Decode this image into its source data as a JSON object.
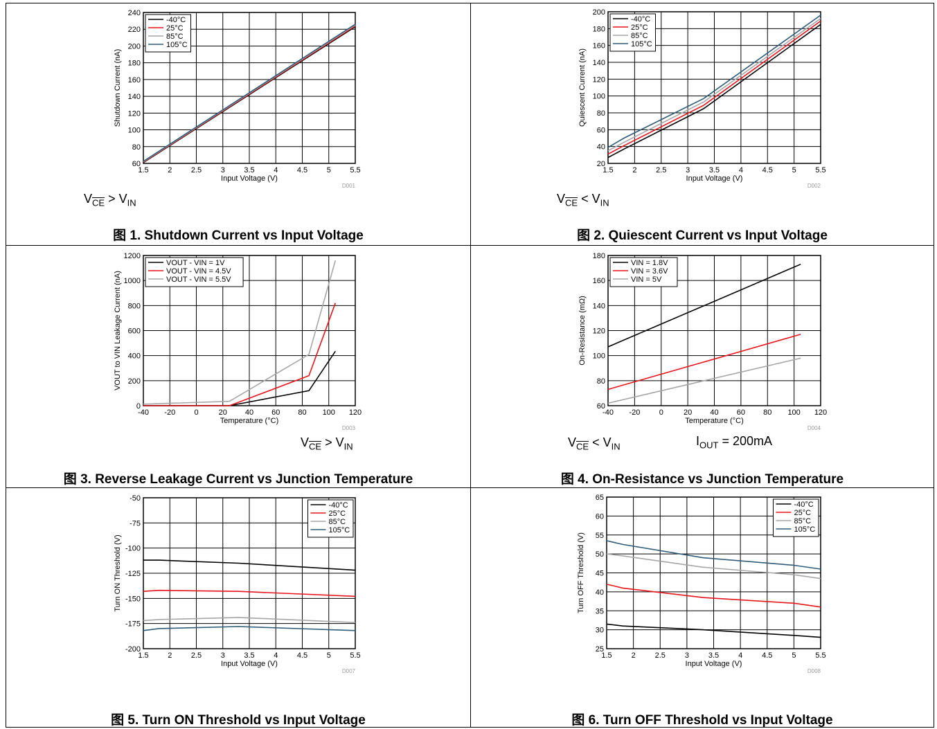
{
  "captions": [
    "图 1. Shutdown Current vs Input Voltage",
    "图 2. Quiescent Current vs Input Voltage",
    "图 3. Reverse Leakage Current vs Junction Temperature",
    "图 4. On-Resistance vs Junction Temperature",
    "图 5. Turn ON Threshold vs Input Voltage",
    "图 6. Turn OFF Threshold vs Input Voltage"
  ],
  "notes": [
    {
      "v_label": "V",
      "v_sub": "CE",
      "rel": " > ",
      "in_label": "V",
      "in_sub": "IN"
    },
    {
      "v_label": "V",
      "v_sub": "CE",
      "rel": " < ",
      "in_label": "V",
      "in_sub": "IN"
    },
    {
      "v_label": "V",
      "v_sub": "CE",
      "rel": " > ",
      "in_label": "V",
      "in_sub": "IN"
    },
    {
      "v_label": "V",
      "v_sub": "CE",
      "rel": " < ",
      "in_label": "V",
      "in_sub": "IN",
      "i_label": "I",
      "i_sub": "OUT",
      "i_value": " = 200mA"
    }
  ],
  "colors": {
    "black": "#000000",
    "red": "#e8141c",
    "gray": "#a6a6a6",
    "blue": "#2d5b78"
  },
  "chart_data": [
    {
      "type": "line",
      "id": "D001",
      "xlabel": "Input Voltage (V)",
      "ylabel": "Shutdown Current (nA)",
      "xlim": [
        1.5,
        5.5
      ],
      "ylim": [
        60,
        240
      ],
      "xticks": [
        "1.5",
        "2",
        "2.5",
        "3",
        "3.5",
        "4",
        "4.5",
        "5",
        "5.5"
      ],
      "yticks": [
        "60",
        "80",
        "100",
        "120",
        "140",
        "160",
        "180",
        "200",
        "220",
        "240"
      ],
      "grid": true,
      "legend": "top-left",
      "series": [
        {
          "name": "-40°C",
          "color": "black",
          "x": [
            1.5,
            5.5
          ],
          "y": [
            61,
            223
          ]
        },
        {
          "name": "25°C",
          "color": "red",
          "x": [
            1.5,
            5.5
          ],
          "y": [
            61.5,
            224
          ]
        },
        {
          "name": "85°C",
          "color": "gray",
          "x": [
            1.5,
            5.5
          ],
          "y": [
            62,
            225
          ]
        },
        {
          "name": "105°C",
          "color": "blue",
          "x": [
            1.5,
            5.5
          ],
          "y": [
            62.5,
            226
          ]
        }
      ]
    },
    {
      "type": "line",
      "id": "D002",
      "xlabel": "Input Voltage (V)",
      "ylabel": "Quiescent Current (nA)",
      "xlim": [
        1.5,
        5.5
      ],
      "ylim": [
        20,
        200
      ],
      "xticks": [
        "1.5",
        "2",
        "2.5",
        "3",
        "3.5",
        "4",
        "4.5",
        "5",
        "5.5"
      ],
      "yticks": [
        "20",
        "40",
        "60",
        "80",
        "100",
        "120",
        "140",
        "160",
        "180",
        "200"
      ],
      "grid": true,
      "legend": "top-left",
      "series": [
        {
          "name": "-40°C",
          "color": "black",
          "x": [
            1.5,
            1.8,
            3.3,
            5.5
          ],
          "y": [
            27,
            37,
            85,
            185
          ]
        },
        {
          "name": "25°C",
          "color": "red",
          "x": [
            1.5,
            1.8,
            3.3,
            5.5
          ],
          "y": [
            31,
            41,
            89,
            189
          ]
        },
        {
          "name": "85°C",
          "color": "gray",
          "x": [
            1.5,
            1.8,
            3.3,
            5.5
          ],
          "y": [
            35,
            45,
            93,
            192
          ]
        },
        {
          "name": "105°C",
          "color": "blue",
          "x": [
            1.5,
            1.8,
            3.3,
            5.5
          ],
          "y": [
            39,
            50,
            97,
            196
          ]
        }
      ]
    },
    {
      "type": "line",
      "id": "D003",
      "xlabel": "Temperature (°C)",
      "ylabel": "VOUT to VIN Leakage Current (nA)",
      "xlim": [
        -40,
        120
      ],
      "ylim": [
        0,
        1200
      ],
      "xticks": [
        "-40",
        "-20",
        "0",
        "20",
        "40",
        "60",
        "80",
        "100",
        "120"
      ],
      "yticks": [
        "0",
        "200",
        "400",
        "600",
        "800",
        "1000",
        "1200"
      ],
      "grid": true,
      "legend": "top-left",
      "series": [
        {
          "name": "VOUT - VIN = 1V",
          "color": "black",
          "x": [
            -40,
            25,
            85,
            105
          ],
          "y": [
            0,
            0,
            120,
            435
          ]
        },
        {
          "name": "VOUT - VIN = 4.5V",
          "color": "red",
          "x": [
            -40,
            25,
            85,
            105
          ],
          "y": [
            0,
            0,
            240,
            820
          ]
        },
        {
          "name": "VOUT - VIN = 5.5V",
          "color": "gray",
          "x": [
            -40,
            25,
            85,
            105
          ],
          "y": [
            12,
            35,
            410,
            1160
          ]
        }
      ]
    },
    {
      "type": "line",
      "id": "D004",
      "xlabel": "Temperature (°C)",
      "ylabel": "On-Resistance (mΩ)",
      "xlim": [
        -40,
        120
      ],
      "ylim": [
        60,
        180
      ],
      "xticks": [
        "-40",
        "-20",
        "0",
        "20",
        "40",
        "60",
        "80",
        "100",
        "120"
      ],
      "yticks": [
        "60",
        "80",
        "100",
        "120",
        "140",
        "160",
        "180"
      ],
      "grid": true,
      "legend": "top-left",
      "series": [
        {
          "name": "VIN = 1.8V",
          "color": "black",
          "x": [
            -40,
            105
          ],
          "y": [
            107,
            173
          ]
        },
        {
          "name": "VIN = 3.6V",
          "color": "red",
          "x": [
            -40,
            105
          ],
          "y": [
            73,
            117
          ]
        },
        {
          "name": "VIN = 5V",
          "color": "gray",
          "x": [
            -40,
            105
          ],
          "y": [
            62,
            98
          ]
        }
      ]
    },
    {
      "type": "line",
      "id": "D007",
      "xlabel": "Input Voltage (V)",
      "ylabel": "Turn ON Threshold (V)",
      "xlim": [
        1.5,
        5.5
      ],
      "ylim": [
        -200,
        -50
      ],
      "xticks": [
        "1.5",
        "2",
        "2.5",
        "3",
        "3.5",
        "4",
        "4.5",
        "5",
        "5.5"
      ],
      "yticks": [
        "-200",
        "-175",
        "-150",
        "-125",
        "-100",
        "-75",
        "-50"
      ],
      "grid": true,
      "legend": "top-right",
      "series": [
        {
          "name": "-40°C",
          "color": "black",
          "x": [
            1.5,
            1.8,
            3.3,
            5.5
          ],
          "y": [
            -112,
            -112,
            -115,
            -122
          ]
        },
        {
          "name": "25°C",
          "color": "red",
          "x": [
            1.5,
            1.8,
            3.3,
            5.5
          ],
          "y": [
            -143,
            -142,
            -143,
            -148
          ]
        },
        {
          "name": "85°C",
          "color": "gray",
          "x": [
            1.5,
            1.8,
            3.3,
            5.5
          ],
          "y": [
            -172,
            -171,
            -169,
            -174
          ]
        },
        {
          "name": "105°C",
          "color": "blue",
          "x": [
            1.5,
            1.8,
            3.3,
            5.5
          ],
          "y": [
            -182,
            -180,
            -178,
            -182
          ]
        }
      ]
    },
    {
      "type": "line",
      "id": "D008",
      "xlabel": "Input Voltage (V)",
      "ylabel": "Turn OFF Threshold (V)",
      "xlim": [
        1.5,
        5.5
      ],
      "ylim": [
        25,
        65
      ],
      "xticks": [
        "1.5",
        "2",
        "2.5",
        "3",
        "3.5",
        "4",
        "4.5",
        "5",
        "5.5"
      ],
      "yticks": [
        "25",
        "30",
        "35",
        "40",
        "45",
        "50",
        "55",
        "60",
        "65"
      ],
      "grid": true,
      "legend": "top-right",
      "series": [
        {
          "name": "-40°C",
          "color": "black",
          "x": [
            1.5,
            1.8,
            3.3,
            5,
            5.5
          ],
          "y": [
            31.5,
            31,
            30,
            28.5,
            28
          ]
        },
        {
          "name": "25°C",
          "color": "red",
          "x": [
            1.5,
            1.8,
            3.3,
            5,
            5.5
          ],
          "y": [
            42,
            41,
            38.5,
            37,
            36
          ]
        },
        {
          "name": "85°C",
          "color": "gray",
          "x": [
            1.5,
            1.8,
            3.3,
            5,
            5.5
          ],
          "y": [
            50,
            49.5,
            46.5,
            44.5,
            43.5
          ]
        },
        {
          "name": "105°C",
          "color": "blue",
          "x": [
            1.5,
            1.8,
            3.3,
            5,
            5.5
          ],
          "y": [
            53.5,
            52.5,
            49,
            47,
            46
          ]
        }
      ]
    }
  ]
}
